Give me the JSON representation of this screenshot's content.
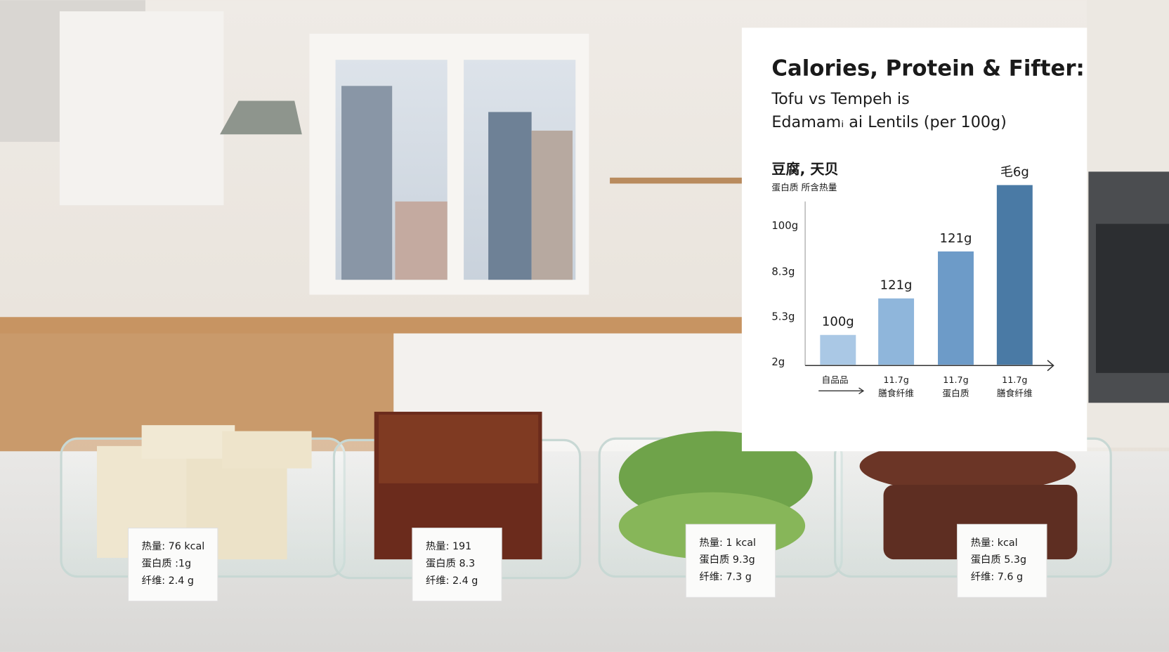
{
  "panel": {
    "title": "Calories, Protein & Fifter:",
    "subtitle_lines": [
      "Tofu vs Tempeh is",
      "Edamamᵢ ai Lentils (per 100g)"
    ],
    "cn_title": "豆腐, 天贝",
    "cn_subtitle": "蛋白质 所含热量",
    "y_labels": [
      "100g",
      "8.3g",
      "5.3g",
      "2g"
    ],
    "bars": [
      {
        "label": "100g",
        "caption": [
          "自品品"
        ]
      },
      {
        "label": "121g",
        "caption": [
          "11.7g",
          "膳食纤维"
        ]
      },
      {
        "label": "121g",
        "caption": [
          "11.7g",
          "蛋白质"
        ]
      },
      {
        "label": "毛6g",
        "caption": [
          "11.7g",
          "膳食纤维"
        ]
      }
    ]
  },
  "food_cards": [
    {
      "lines": [
        "热量: 76 kcal",
        "蛋白质 :1g",
        "纤维: 2.4 g"
      ]
    },
    {
      "lines": [
        "热量: 191",
        "蛋白质 8.3",
        "纤维: 2.4 g"
      ]
    },
    {
      "lines": [
        "热量: 1 kcal",
        "蛋白质 9.3g",
        "纤维: 7.3 g"
      ]
    },
    {
      "lines": [
        "热量: kcal",
        "蛋白质 5.3g",
        "纤维: 7.6 g"
      ]
    }
  ]
}
